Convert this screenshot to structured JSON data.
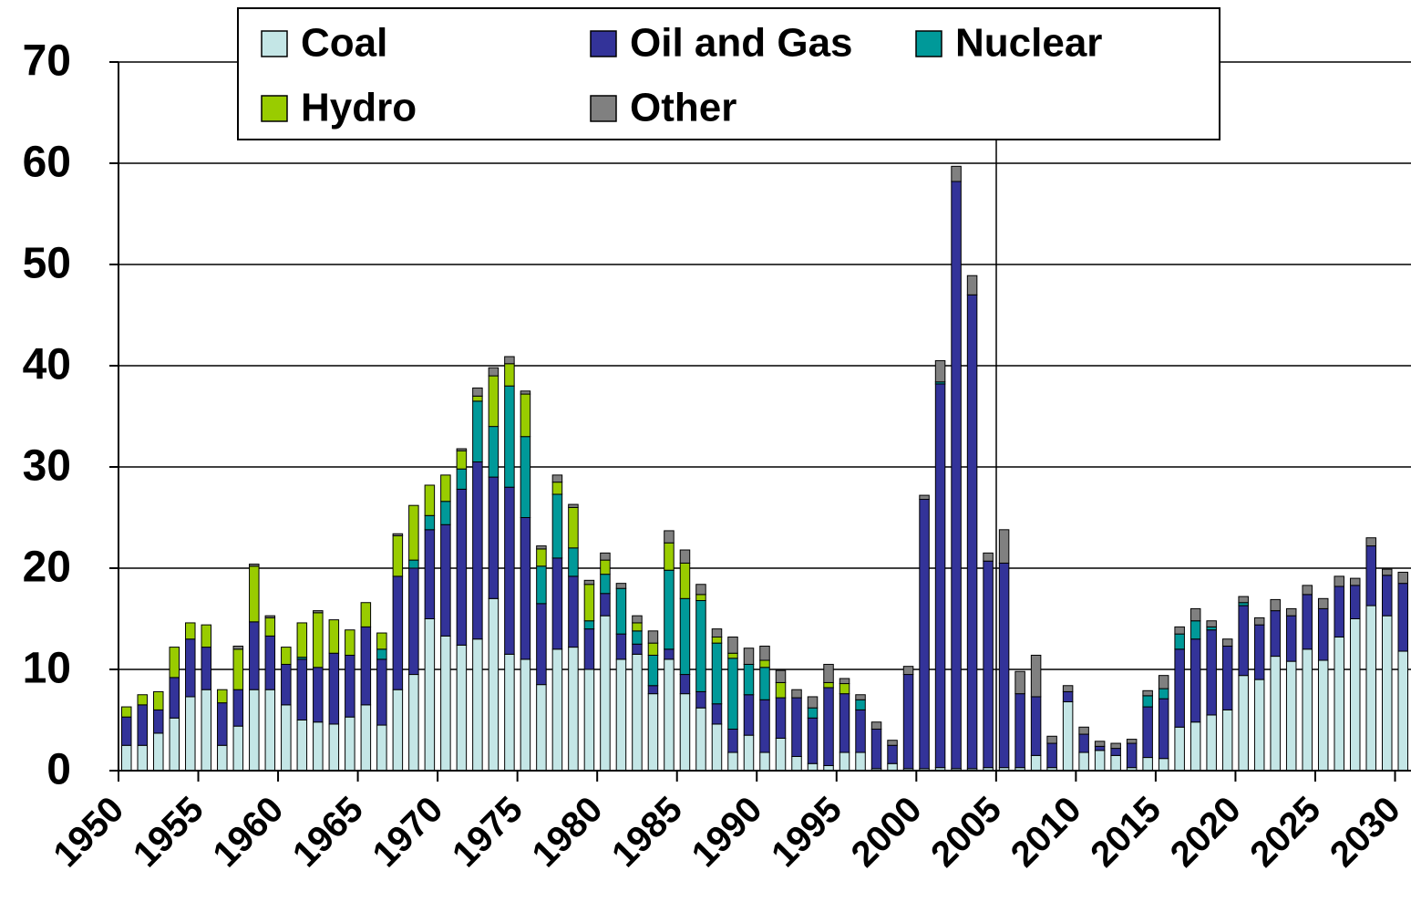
{
  "chart_data": {
    "type": "stacked_bar",
    "categories": [
      1950,
      null,
      null,
      null,
      null,
      1955,
      null,
      null,
      null,
      null,
      1960,
      null,
      null,
      null,
      null,
      1965,
      null,
      null,
      null,
      null,
      1970,
      null,
      null,
      null,
      null,
      1975,
      null,
      null,
      null,
      null,
      1980,
      null,
      null,
      null,
      null,
      1985,
      null,
      null,
      null,
      null,
      1990,
      null,
      null,
      null,
      null,
      1995,
      null,
      null,
      null,
      null,
      2000,
      null,
      null,
      null,
      null,
      2005,
      null,
      null,
      null,
      null,
      2010,
      null,
      null,
      null,
      null,
      2015,
      null,
      null,
      null,
      null,
      2020,
      null,
      null,
      null,
      null,
      2025,
      null,
      null,
      null,
      null,
      2030
    ],
    "series": [
      {
        "name": "Coal",
        "color": "#c4e6e6",
        "values": [
          2.5,
          2.5,
          3.7,
          5.2,
          7.3,
          8.0,
          2.5,
          4.4,
          8.0,
          8.0,
          6.5,
          5.0,
          4.8,
          4.6,
          5.3,
          6.5,
          4.5,
          8.0,
          9.5,
          15.0,
          13.3,
          12.4,
          13.0,
          17.0,
          11.5,
          11.0,
          8.5,
          12.0,
          12.2,
          10.0,
          15.3,
          11.0,
          11.5,
          7.6,
          11.0,
          7.6,
          6.2,
          4.6,
          1.8,
          3.5,
          1.8,
          3.2,
          1.4,
          0.7,
          0.5,
          1.8,
          1.8,
          0.2,
          0.7,
          0.2,
          0.2,
          0.3,
          0.2,
          0.2,
          0.3,
          0.3,
          0.3,
          1.5,
          0.3,
          6.8,
          1.8,
          2.0,
          1.5,
          0.3,
          1.3,
          1.2,
          4.3,
          4.8,
          5.5,
          6.0,
          9.4,
          9.0,
          11.3,
          10.8,
          12.0,
          10.9,
          13.2,
          15.0,
          16.3,
          15.3,
          11.8
        ]
      },
      {
        "name": "Oil and Gas",
        "color": "#333399",
        "values": [
          2.8,
          4.0,
          2.3,
          4.0,
          5.7,
          4.2,
          4.2,
          3.6,
          6.7,
          5.3,
          4.0,
          6.0,
          5.4,
          7.0,
          6.1,
          7.7,
          6.5,
          11.2,
          10.5,
          8.8,
          11.0,
          15.4,
          17.5,
          12.0,
          16.5,
          14.0,
          8.0,
          9.0,
          7.0,
          4.0,
          2.2,
          2.5,
          1.0,
          0.8,
          1.0,
          1.9,
          1.6,
          2.0,
          2.3,
          4.0,
          5.2,
          4.0,
          5.8,
          4.5,
          7.7,
          5.8,
          4.2,
          3.9,
          1.8,
          9.3,
          26.6,
          37.9,
          58.0,
          46.8,
          20.4,
          20.2,
          7.3,
          5.8,
          2.4,
          1.0,
          1.8,
          0.4,
          0.7,
          2.4,
          5.0,
          5.9,
          7.7,
          8.2,
          8.4,
          6.3,
          6.9,
          5.4,
          4.5,
          4.5,
          5.4,
          5.1,
          5.0,
          3.3,
          5.9,
          4.0,
          6.7
        ]
      },
      {
        "name": "Nuclear",
        "color": "#009999",
        "values": [
          0,
          0,
          0,
          0,
          0,
          0,
          0,
          0,
          0,
          0,
          0,
          0.2,
          0,
          0,
          0,
          0,
          1.0,
          0,
          0.8,
          1.4,
          2.3,
          2.0,
          6.0,
          5.0,
          10.0,
          8.0,
          3.7,
          6.3,
          2.8,
          0.8,
          1.9,
          4.5,
          1.3,
          3.0,
          7.8,
          7.5,
          9.0,
          6.0,
          7.0,
          3.0,
          3.2,
          0,
          0,
          1.0,
          0,
          0,
          1.0,
          0,
          0,
          0,
          0,
          0.2,
          0,
          0,
          0,
          0,
          0,
          0,
          0,
          0,
          0,
          0,
          0,
          0,
          1.1,
          1.0,
          1.5,
          1.8,
          0.3,
          0,
          0.3,
          0,
          0,
          0,
          0,
          0,
          0,
          0,
          0,
          0,
          0
        ]
      },
      {
        "name": "Hydro",
        "color": "#99cc00",
        "values": [
          1.0,
          1.0,
          1.8,
          3.0,
          1.6,
          2.2,
          1.3,
          4.0,
          5.5,
          1.8,
          1.7,
          3.4,
          5.4,
          3.3,
          2.5,
          2.4,
          1.6,
          4.0,
          5.4,
          3.0,
          2.6,
          1.8,
          0.5,
          5.0,
          2.2,
          4.2,
          1.7,
          1.2,
          4.0,
          3.6,
          1.4,
          0,
          0.8,
          1.2,
          2.7,
          3.5,
          0.6,
          0.6,
          0.5,
          0,
          0.7,
          1.5,
          0,
          0,
          0.5,
          1.0,
          0,
          0,
          0,
          0,
          0,
          0,
          0,
          0,
          0,
          0,
          0,
          0,
          0,
          0,
          0,
          0,
          0,
          0,
          0,
          0,
          0,
          0,
          0,
          0,
          0,
          0,
          0,
          0,
          0,
          0,
          0,
          0,
          0,
          0,
          0
        ]
      },
      {
        "name": "Other",
        "color": "#808080",
        "values": [
          0,
          0,
          0,
          0,
          0,
          0,
          0,
          0.3,
          0.2,
          0.2,
          0,
          0,
          0.2,
          0,
          0,
          0,
          0,
          0.2,
          0,
          0,
          0,
          0.2,
          0.8,
          0.8,
          0.7,
          0.3,
          0.3,
          0.7,
          0.3,
          0.4,
          0.7,
          0.5,
          0.7,
          1.2,
          1.2,
          1.3,
          1.0,
          0.8,
          1.6,
          1.6,
          1.4,
          1.2,
          0.8,
          1.1,
          1.8,
          0.5,
          0.5,
          0.7,
          0.5,
          0.8,
          0.4,
          2.1,
          1.5,
          1.9,
          0.8,
          3.3,
          2.2,
          4.1,
          0.7,
          0.6,
          0.7,
          0.5,
          0.5,
          0.4,
          0.5,
          1.3,
          0.7,
          1.2,
          0.6,
          0.7,
          0.6,
          0.7,
          1.1,
          0.7,
          0.9,
          1.0,
          1.0,
          0.7,
          0.8,
          0.6,
          1.1
        ]
      }
    ],
    "ylim": [
      0,
      70
    ],
    "yticks": [
      0,
      10,
      20,
      30,
      40,
      50,
      60,
      70
    ],
    "grid": true,
    "legend": "top"
  }
}
